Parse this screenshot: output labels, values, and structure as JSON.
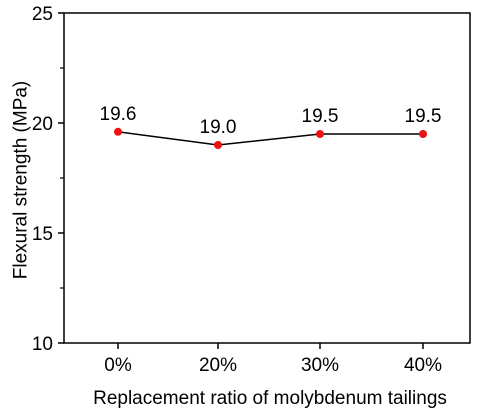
{
  "chart_data": {
    "type": "line",
    "categories": [
      "0%",
      "20%",
      "30%",
      "40%"
    ],
    "series": [
      {
        "values": [
          19.6,
          19.0,
          19.5,
          19.5
        ],
        "data_labels": [
          "19.6",
          "19.0",
          "19.5",
          "19.5"
        ]
      }
    ],
    "xlabel": "Replacement ratio of molybdenum tailings",
    "ylabel": "Flexural strength (MPa)",
    "ylim": [
      10,
      25
    ],
    "yticks": [
      10,
      15,
      20,
      25
    ],
    "ytick_labels": [
      "10",
      "15",
      "20",
      "25"
    ],
    "minor_yticks": [
      12.5,
      17.5,
      22.5
    ],
    "grid": false,
    "legend": "none",
    "colors": {
      "line": "#000000",
      "marker": "#ee1111",
      "axis": "#000000"
    }
  }
}
